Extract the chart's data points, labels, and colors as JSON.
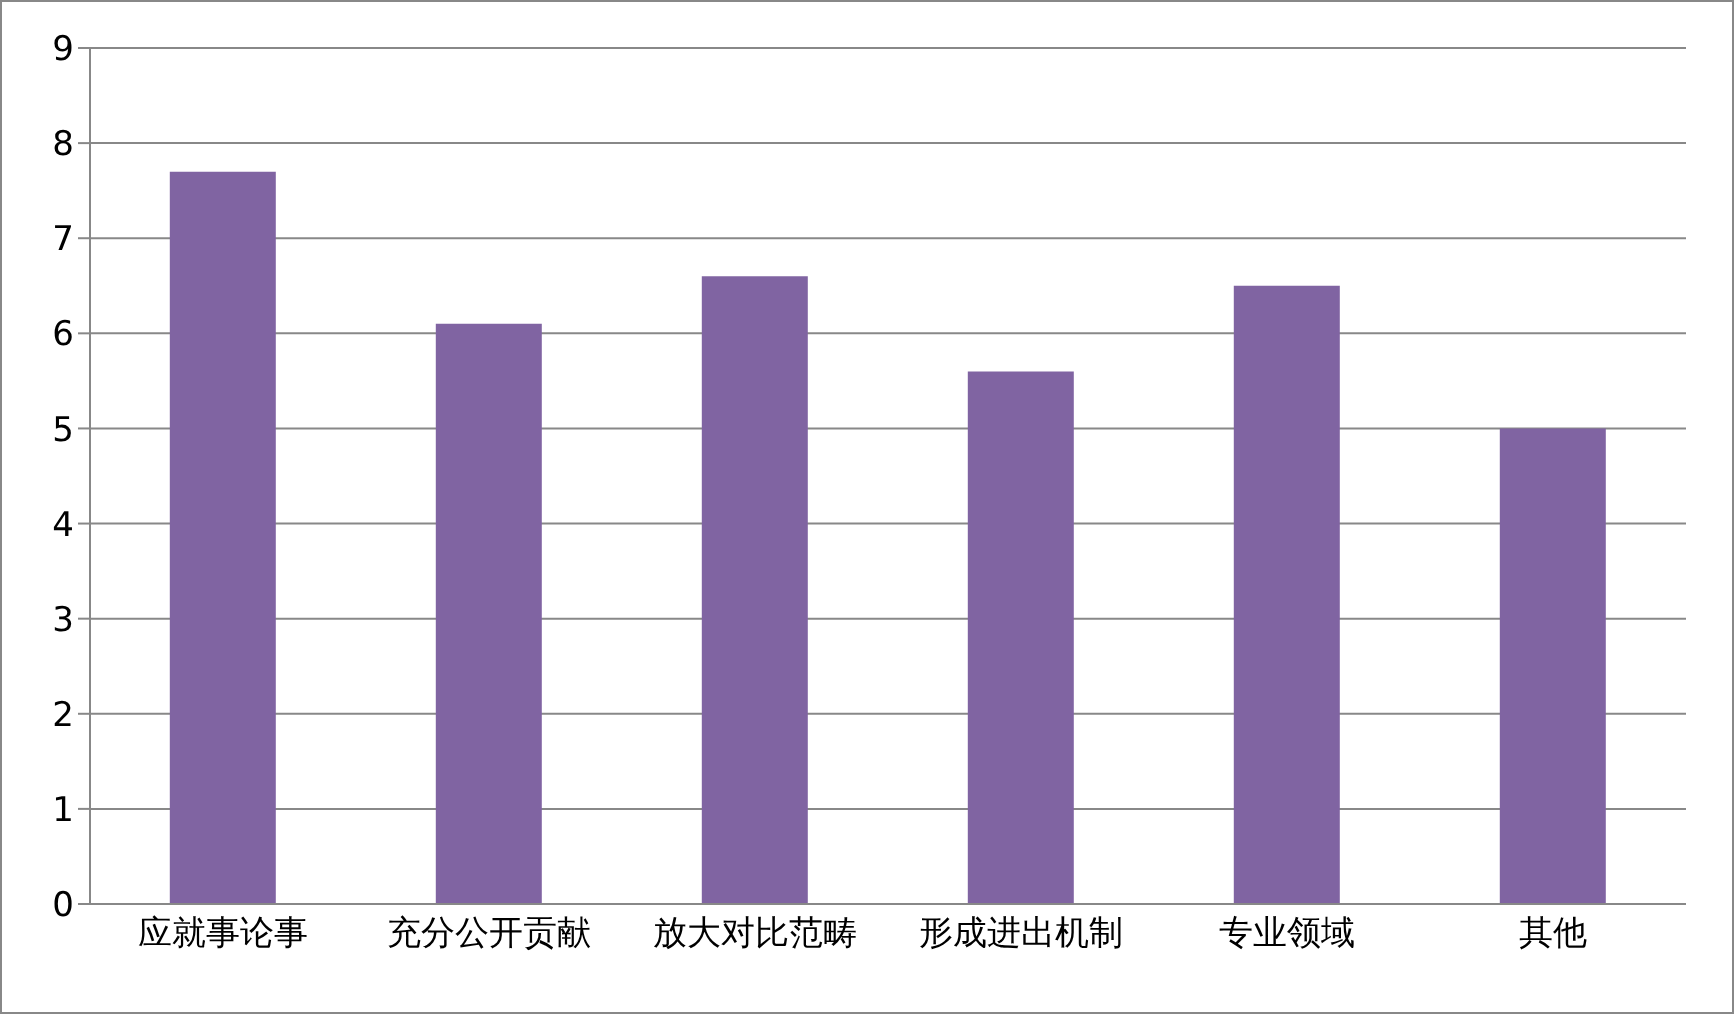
{
  "chart_data": {
    "type": "bar",
    "categories": [
      "应就事论事",
      "充分公开贡献",
      "放大对比范畴",
      "形成进出机制",
      "专业领域",
      "其他"
    ],
    "values": [
      7.7,
      6.1,
      6.6,
      5.6,
      6.5,
      5.0
    ],
    "color": "#8064a2",
    "ylim": [
      0,
      9
    ],
    "yticks": [
      0,
      1,
      2,
      3,
      4,
      5,
      6,
      7,
      8,
      9
    ],
    "grid": "y"
  }
}
